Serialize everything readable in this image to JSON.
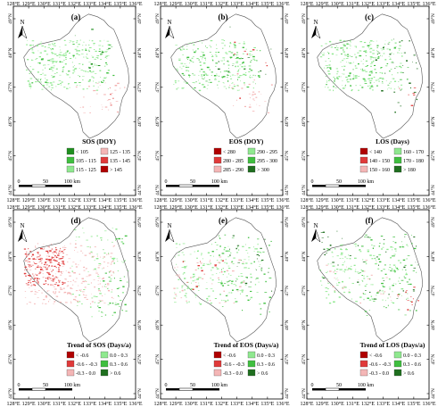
{
  "panels": [
    {
      "letter": "(a)",
      "legend_title": "SOS (DOY)",
      "legend_items": [
        {
          "label": "< 105",
          "color": "#1f8f1f"
        },
        {
          "label": "125 - 135",
          "color": "#f4b6b6"
        },
        {
          "label": "105 - 115",
          "color": "#3fbf3f"
        },
        {
          "label": "135 - 145",
          "color": "#e03a3a"
        },
        {
          "label": "115 - 125",
          "color": "#8fe88f"
        },
        {
          "label": "> 145",
          "color": "#b00000"
        }
      ]
    },
    {
      "letter": "(b)",
      "legend_title": "EOS (DOY)",
      "legend_items": [
        {
          "label": "< 280",
          "color": "#b00000"
        },
        {
          "label": "290 - 295",
          "color": "#8fe88f"
        },
        {
          "label": "280 - 285",
          "color": "#e03a3a"
        },
        {
          "label": "295 - 300",
          "color": "#3fbf3f"
        },
        {
          "label": "285 - 290",
          "color": "#f4b6b6"
        },
        {
          "label": "> 300",
          "color": "#1f6f1f"
        }
      ]
    },
    {
      "letter": "(c)",
      "legend_title": "LOS (Days)",
      "legend_items": [
        {
          "label": "< 140",
          "color": "#b00000"
        },
        {
          "label": "160 - 170",
          "color": "#8fe88f"
        },
        {
          "label": "140 - 150",
          "color": "#e03a3a"
        },
        {
          "label": "170 - 180",
          "color": "#3fbf3f"
        },
        {
          "label": "150 - 160",
          "color": "#f4b6b6"
        },
        {
          "label": "> 180",
          "color": "#1f6f1f"
        }
      ]
    },
    {
      "letter": "(d)",
      "legend_title": "Trend of SOS (Days/a)",
      "legend_items": [
        {
          "label": "< -0.6",
          "color": "#b00000"
        },
        {
          "label": "0.0 - 0.3",
          "color": "#8fe88f"
        },
        {
          "label": "-0.6 - -0.3",
          "color": "#e03a3a"
        },
        {
          "label": "0.3 - 0.6",
          "color": "#3fbf3f"
        },
        {
          "label": "-0.3 - 0.0",
          "color": "#f4b6b6"
        },
        {
          "label": "> 0.6",
          "color": "#1f6f1f"
        }
      ]
    },
    {
      "letter": "(e)",
      "legend_title": "Trend of EOS (Days/a)",
      "legend_items": [
        {
          "label": "< -0.6",
          "color": "#b00000"
        },
        {
          "label": "0.0 - 0.3",
          "color": "#8fe88f"
        },
        {
          "label": "-0.6 - -0.3",
          "color": "#e03a3a"
        },
        {
          "label": "0.3 - 0.6",
          "color": "#3fbf3f"
        },
        {
          "label": "-0.3 - 0.0",
          "color": "#f4b6b6"
        },
        {
          "label": "> 0.6",
          "color": "#1f6f1f"
        }
      ]
    },
    {
      "letter": "(f)",
      "legend_title": "Trend of LOS (Days/a)",
      "legend_items": [
        {
          "label": "< -0.6",
          "color": "#b00000"
        },
        {
          "label": "0.0 - 0.3",
          "color": "#8fe88f"
        },
        {
          "label": "-0.6 - -0.3",
          "color": "#e03a3a"
        },
        {
          "label": "0.3 - 0.6",
          "color": "#3fbf3f"
        },
        {
          "label": "-0.3 - 0.0",
          "color": "#f4b6b6"
        },
        {
          "label": "> 0.6",
          "color": "#1f6f1f"
        }
      ]
    }
  ],
  "longitude_labels": [
    "128°E",
    "129°E",
    "130°E",
    "131°E",
    "132°E",
    "133°E",
    "134°E",
    "135°E",
    "136°E"
  ],
  "latitude_labels": [
    "49°N",
    "48°N",
    "47°N",
    "46°N",
    "45°N",
    "44°N"
  ],
  "north_label": "N",
  "scale_bar": {
    "zero": "0",
    "mid": "50",
    "end": "100 km"
  }
}
